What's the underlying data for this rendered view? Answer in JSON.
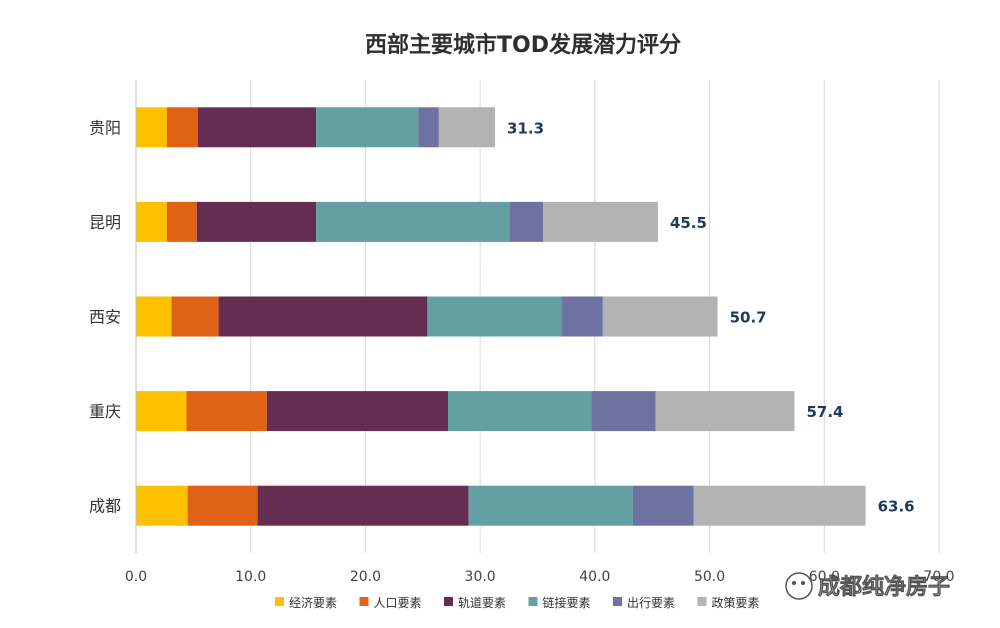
{
  "chart_data": {
    "type": "bar",
    "orientation": "horizontal",
    "stacked": true,
    "title": "西部主要城市TOD发展潜力评分",
    "categories": [
      "贵阳",
      "昆明",
      "西安",
      "重庆",
      "成都"
    ],
    "series": [
      {
        "name": "经济要素",
        "color": "#FFC000",
        "values": [
          2.7,
          2.7,
          3.1,
          4.4,
          4.5
        ]
      },
      {
        "name": "人口要素",
        "color": "#E06214",
        "values": [
          2.7,
          2.6,
          4.1,
          7.0,
          6.1
        ]
      },
      {
        "name": "轨道要素",
        "color": "#662D52",
        "values": [
          10.3,
          10.4,
          18.2,
          15.8,
          18.4
        ]
      },
      {
        "name": "链接要素",
        "color": "#62A0A4",
        "values": [
          8.9,
          16.9,
          11.7,
          12.5,
          14.3
        ]
      },
      {
        "name": "出行要素",
        "color": "#6E72A0",
        "values": [
          1.8,
          2.9,
          3.6,
          5.6,
          5.3
        ]
      },
      {
        "name": "政策要素",
        "color": "#B3B3B3",
        "values": [
          4.9,
          10.0,
          10.0,
          12.1,
          15.0
        ]
      }
    ],
    "totals": [
      "31.3",
      "45.5",
      "50.7",
      "57.4",
      "63.6"
    ],
    "x_ticks": [
      "0.0",
      "10.0",
      "20.0",
      "30.0",
      "40.0",
      "50.0",
      "60.0",
      "70.0"
    ],
    "xlim": [
      0,
      70
    ],
    "grid": true,
    "legend_position": "bottom"
  },
  "watermark": {
    "text": "成都纯净房子",
    "icon": "wechat-icon"
  }
}
